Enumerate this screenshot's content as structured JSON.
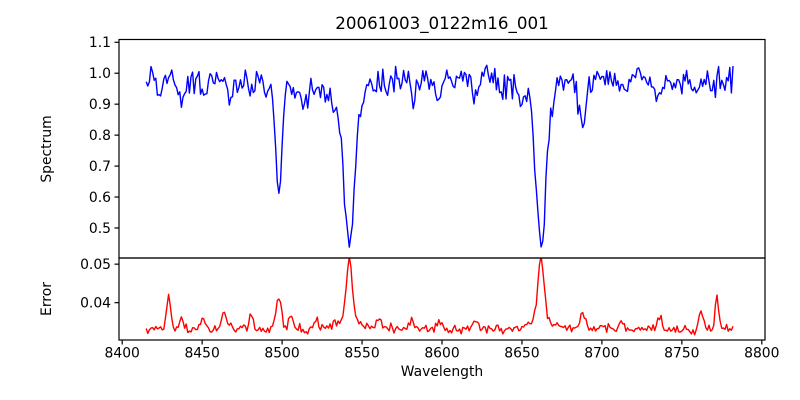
{
  "figure": {
    "background": "#ffffff",
    "text_color": "#000000",
    "spine_color": "#000000"
  },
  "chart_data": [
    {
      "id": "spectrum-panel",
      "type": "line",
      "title": "20061003_0122m16_001",
      "ylabel": "Spectrum",
      "line_color": "#0000ff",
      "xlim": [
        8398,
        8802
      ],
      "ylim": [
        0.403,
        1.109
      ],
      "ytick_values": [
        1.1,
        1.0,
        0.9,
        0.8,
        0.7,
        0.6,
        0.5
      ],
      "ytick_labels": [
        "1.1",
        "1.0",
        "0.9",
        "0.8",
        "0.7",
        "0.6",
        "0.5"
      ],
      "x_data_range": [
        8415,
        8782
      ],
      "x_step": 1,
      "continuum": 0.978,
      "noise_std": 0.021,
      "grid": false,
      "legend": "none",
      "absorption_lines": [
        {
          "c": 8424,
          "d": 0.05,
          "s": 1.5
        },
        {
          "c": 8437,
          "d": 0.07,
          "s": 1.8
        },
        {
          "c": 8452,
          "d": 0.055,
          "s": 1.5
        },
        {
          "c": 8468,
          "d": 0.06,
          "s": 1.8
        },
        {
          "c": 8481,
          "d": 0.05,
          "s": 1.5
        },
        {
          "c": 8498,
          "d": 0.32,
          "s": 1.9,
          "wd": 0.04,
          "ws": 5
        },
        {
          "c": 8514,
          "d": 0.075,
          "s": 2.0
        },
        {
          "c": 8527,
          "d": 0.04,
          "s": 1.5
        },
        {
          "c": 8542,
          "d": 0.43,
          "s": 3.0,
          "wd": 0.1,
          "ws": 9
        },
        {
          "c": 8565,
          "d": 0.045,
          "s": 1.5
        },
        {
          "c": 8583,
          "d": 0.05,
          "s": 1.8
        },
        {
          "c": 8598,
          "d": 0.04,
          "s": 1.5
        },
        {
          "c": 8621,
          "d": 0.055,
          "s": 1.8
        },
        {
          "c": 8637,
          "d": 0.04,
          "s": 1.5
        },
        {
          "c": 8648,
          "d": 0.04,
          "s": 1.5
        },
        {
          "c": 8662,
          "d": 0.45,
          "s": 2.8,
          "wd": 0.09,
          "ws": 8
        },
        {
          "c": 8688,
          "d": 0.125,
          "s": 2.4
        },
        {
          "c": 8713,
          "d": 0.045,
          "s": 1.5
        },
        {
          "c": 8736,
          "d": 0.06,
          "s": 1.8
        },
        {
          "c": 8747,
          "d": 0.04,
          "s": 1.5
        },
        {
          "c": 8757,
          "d": 0.05,
          "s": 1.5
        },
        {
          "c": 8769,
          "d": 0.055,
          "s": 1.5
        }
      ]
    },
    {
      "id": "error-panel",
      "type": "line",
      "ylabel": "Error",
      "xlabel": "Wavelength",
      "line_color": "#ff0000",
      "xlim": [
        8398,
        8802
      ],
      "ylim": [
        0.0303,
        0.0516
      ],
      "ytick_values": [
        0.05,
        0.04
      ],
      "ytick_labels": [
        "0.05",
        "0.04"
      ],
      "xtick_values": [
        8400,
        8450,
        8500,
        8550,
        8600,
        8650,
        8700,
        8750,
        8800
      ],
      "xtick_labels": [
        "8400",
        "8450",
        "8500",
        "8550",
        "8600",
        "8650",
        "8700",
        "8750",
        "8800"
      ],
      "x_data_range": [
        8415,
        8782
      ],
      "x_step": 1,
      "baseline": 0.0332,
      "noise_std": 0.0006,
      "grid": false,
      "legend": "none",
      "error_peaks": [
        {
          "c": 8429,
          "h": 0.0087,
          "s": 1.2
        },
        {
          "c": 8437,
          "h": 0.002,
          "s": 1.2
        },
        {
          "c": 8451,
          "h": 0.0025,
          "s": 1.5
        },
        {
          "c": 8464,
          "h": 0.0042,
          "s": 1.5
        },
        {
          "c": 8481,
          "h": 0.0032,
          "s": 1.5
        },
        {
          "c": 8498,
          "h": 0.0085,
          "s": 1.5
        },
        {
          "c": 8505,
          "h": 0.0042,
          "s": 1.2
        },
        {
          "c": 8521,
          "h": 0.002,
          "s": 1.5
        },
        {
          "c": 8542,
          "h": 0.0152,
          "s": 1.8,
          "wh": 0.003,
          "ws": 6
        },
        {
          "c": 8560,
          "h": 0.0028,
          "s": 1.5
        },
        {
          "c": 8580,
          "h": 0.002,
          "s": 1.5
        },
        {
          "c": 8598,
          "h": 0.0018,
          "s": 1.5
        },
        {
          "c": 8621,
          "h": 0.002,
          "s": 1.5
        },
        {
          "c": 8662,
          "h": 0.0158,
          "s": 1.8,
          "wh": 0.003,
          "ws": 6
        },
        {
          "c": 8688,
          "h": 0.0035,
          "s": 1.8
        },
        {
          "c": 8713,
          "h": 0.002,
          "s": 1.5
        },
        {
          "c": 8736,
          "h": 0.0025,
          "s": 1.5
        },
        {
          "c": 8762,
          "h": 0.005,
          "s": 1.2
        },
        {
          "c": 8772,
          "h": 0.0085,
          "s": 1.0
        }
      ]
    }
  ]
}
